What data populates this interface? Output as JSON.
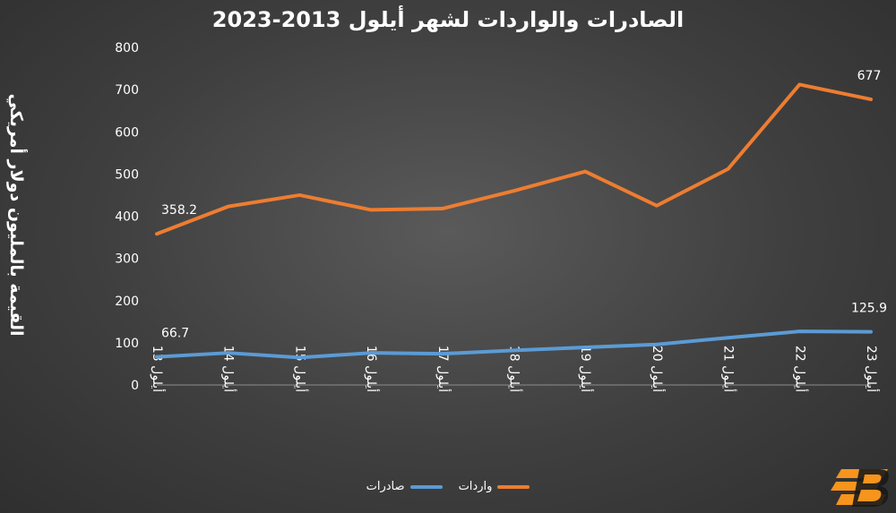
{
  "chart_data": {
    "type": "line",
    "title": "الصادرات والواردات لشهر أيلول 2013-2023",
    "ylabel": "القيمة بالمليون دولار أمريكي",
    "xlabel": "",
    "ylim": [
      0,
      800
    ],
    "yticks": [
      0,
      100,
      200,
      300,
      400,
      500,
      600,
      700,
      800
    ],
    "categories": [
      "أيلول 13",
      "أيلول 14",
      "أيلول 15",
      "أيلول 16",
      "أيلول 17",
      "أيلول 18",
      "أيلول 19",
      "أيلول 20",
      "أيلول 21",
      "أيلول 22",
      "أيلول 23"
    ],
    "series": [
      {
        "name": "واردات",
        "color": "#ED7D31",
        "values": [
          358.2,
          423,
          450,
          415,
          418,
          460,
          506,
          425,
          512,
          712,
          677
        ],
        "labels": [
          {
            "index": 0,
            "text": "358.2"
          },
          {
            "index": 10,
            "text": "677"
          }
        ]
      },
      {
        "name": "صادرات",
        "color": "#5B9BD5",
        "values": [
          66.7,
          76,
          65,
          76,
          74,
          82,
          89,
          96,
          112,
          127,
          125.9
        ],
        "labels": [
          {
            "index": 0,
            "text": "66.7"
          },
          {
            "index": 10,
            "text": "125.9"
          }
        ]
      }
    ],
    "grid": false,
    "legend": "bottom"
  }
}
